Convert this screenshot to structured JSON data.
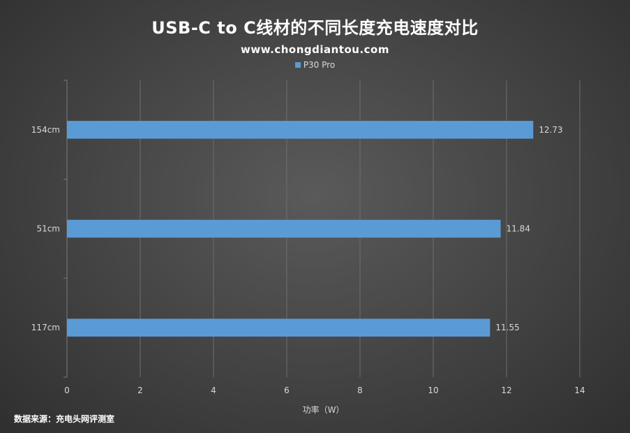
{
  "chart_data": {
    "type": "bar",
    "orientation": "horizontal",
    "title": "USB-C to C线材的不同长度充电速度对比",
    "subtitle": "www.chongdiantou.com",
    "categories": [
      "154cm",
      "51cm",
      "117cm"
    ],
    "series": [
      {
        "name": "P30 Pro",
        "values": [
          12.73,
          11.84,
          11.55
        ],
        "color": "#5b9bd5"
      }
    ],
    "data_labels": [
      "12.73",
      "11.84",
      "11.55"
    ],
    "xlabel": "功率（W）",
    "ylabel": "",
    "xlim": [
      0,
      14
    ],
    "xticks": [
      0,
      2,
      4,
      6,
      8,
      10,
      12,
      14
    ],
    "grid": true,
    "legend_position": "top-center"
  },
  "footer": {
    "source": "数据来源：充电头网评测室"
  }
}
